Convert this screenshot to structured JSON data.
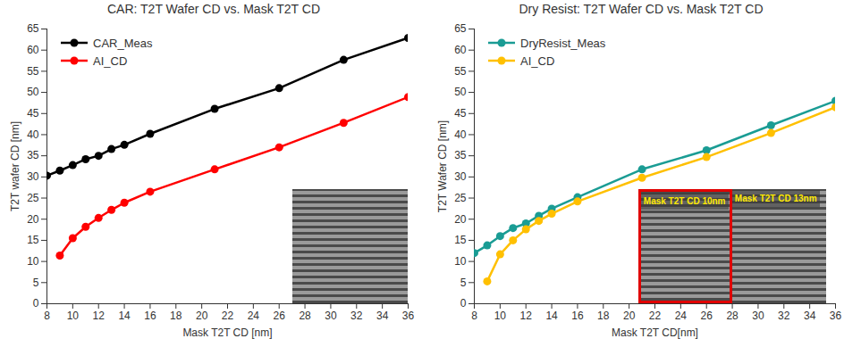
{
  "chart_data": [
    {
      "type": "line",
      "title": "CAR: T2T Wafer CD vs. Mask T2T CD",
      "x_label": "Mask T2T CD [nm]",
      "y_label": "T2T wafer CD [nm]",
      "xlim": [
        8,
        36
      ],
      "xticks": [
        8,
        10,
        12,
        14,
        16,
        18,
        20,
        22,
        24,
        26,
        28,
        30,
        32,
        34,
        36
      ],
      "ylim": [
        0,
        65
      ],
      "yticks": [
        0,
        5,
        10,
        15,
        20,
        25,
        30,
        35,
        40,
        45,
        50,
        55,
        60,
        65
      ],
      "grid": false,
      "legend": "upper left",
      "series": [
        {
          "name": "CAR_Meas",
          "color": "#000000",
          "marker": "circle",
          "x": [
            8,
            9,
            10,
            11,
            12,
            13,
            14,
            16,
            21,
            26,
            31,
            36
          ],
          "values": [
            30.3,
            31.5,
            32.8,
            34.2,
            35.0,
            36.6,
            37.6,
            40.2,
            46.1,
            51.0,
            57.7,
            62.9
          ]
        },
        {
          "name": "AI_CD",
          "color": "#ff0000",
          "marker": "circle",
          "x": [
            9,
            10,
            11,
            12,
            13,
            14,
            16,
            21,
            26,
            31,
            36
          ],
          "values": [
            11.4,
            15.5,
            18.2,
            20.3,
            22.2,
            23.9,
            26.5,
            31.8,
            37.0,
            42.8,
            48.9
          ]
        }
      ]
    },
    {
      "type": "line",
      "title": "Dry Resist: T2T Wafer CD vs. Mask T2T CD",
      "x_label": "Mask T2T CD[nm]",
      "y_label": "T2T Wafer CD [nm]",
      "xlim": [
        8,
        36
      ],
      "xticks": [
        8,
        10,
        12,
        14,
        16,
        18,
        20,
        22,
        24,
        26,
        28,
        30,
        32,
        34,
        36
      ],
      "ylim": [
        0,
        65
      ],
      "yticks": [
        0,
        5,
        10,
        15,
        20,
        25,
        30,
        35,
        40,
        45,
        50,
        55,
        60,
        65
      ],
      "grid": false,
      "legend": "upper left",
      "annotations": [
        "Mask T2T CD 10nm",
        "Mask T2T CD 13nm"
      ],
      "series": [
        {
          "name": "DryResist_Meas",
          "color": "#1a9c94",
          "marker": "circle",
          "x": [
            8,
            9,
            10,
            11,
            12,
            13,
            14,
            16,
            21,
            26,
            31,
            36
          ],
          "values": [
            12.0,
            13.8,
            16.0,
            17.9,
            19.0,
            20.8,
            22.5,
            25.2,
            31.8,
            36.3,
            42.2,
            48.0
          ]
        },
        {
          "name": "AI_CD",
          "color": "#ffc000",
          "marker": "circle",
          "x": [
            9,
            10,
            11,
            12,
            13,
            14,
            16,
            21,
            26,
            31,
            36
          ],
          "values": [
            5.3,
            11.7,
            15.0,
            17.6,
            19.6,
            21.3,
            24.2,
            29.8,
            34.7,
            40.4,
            46.5
          ]
        }
      ]
    }
  ]
}
